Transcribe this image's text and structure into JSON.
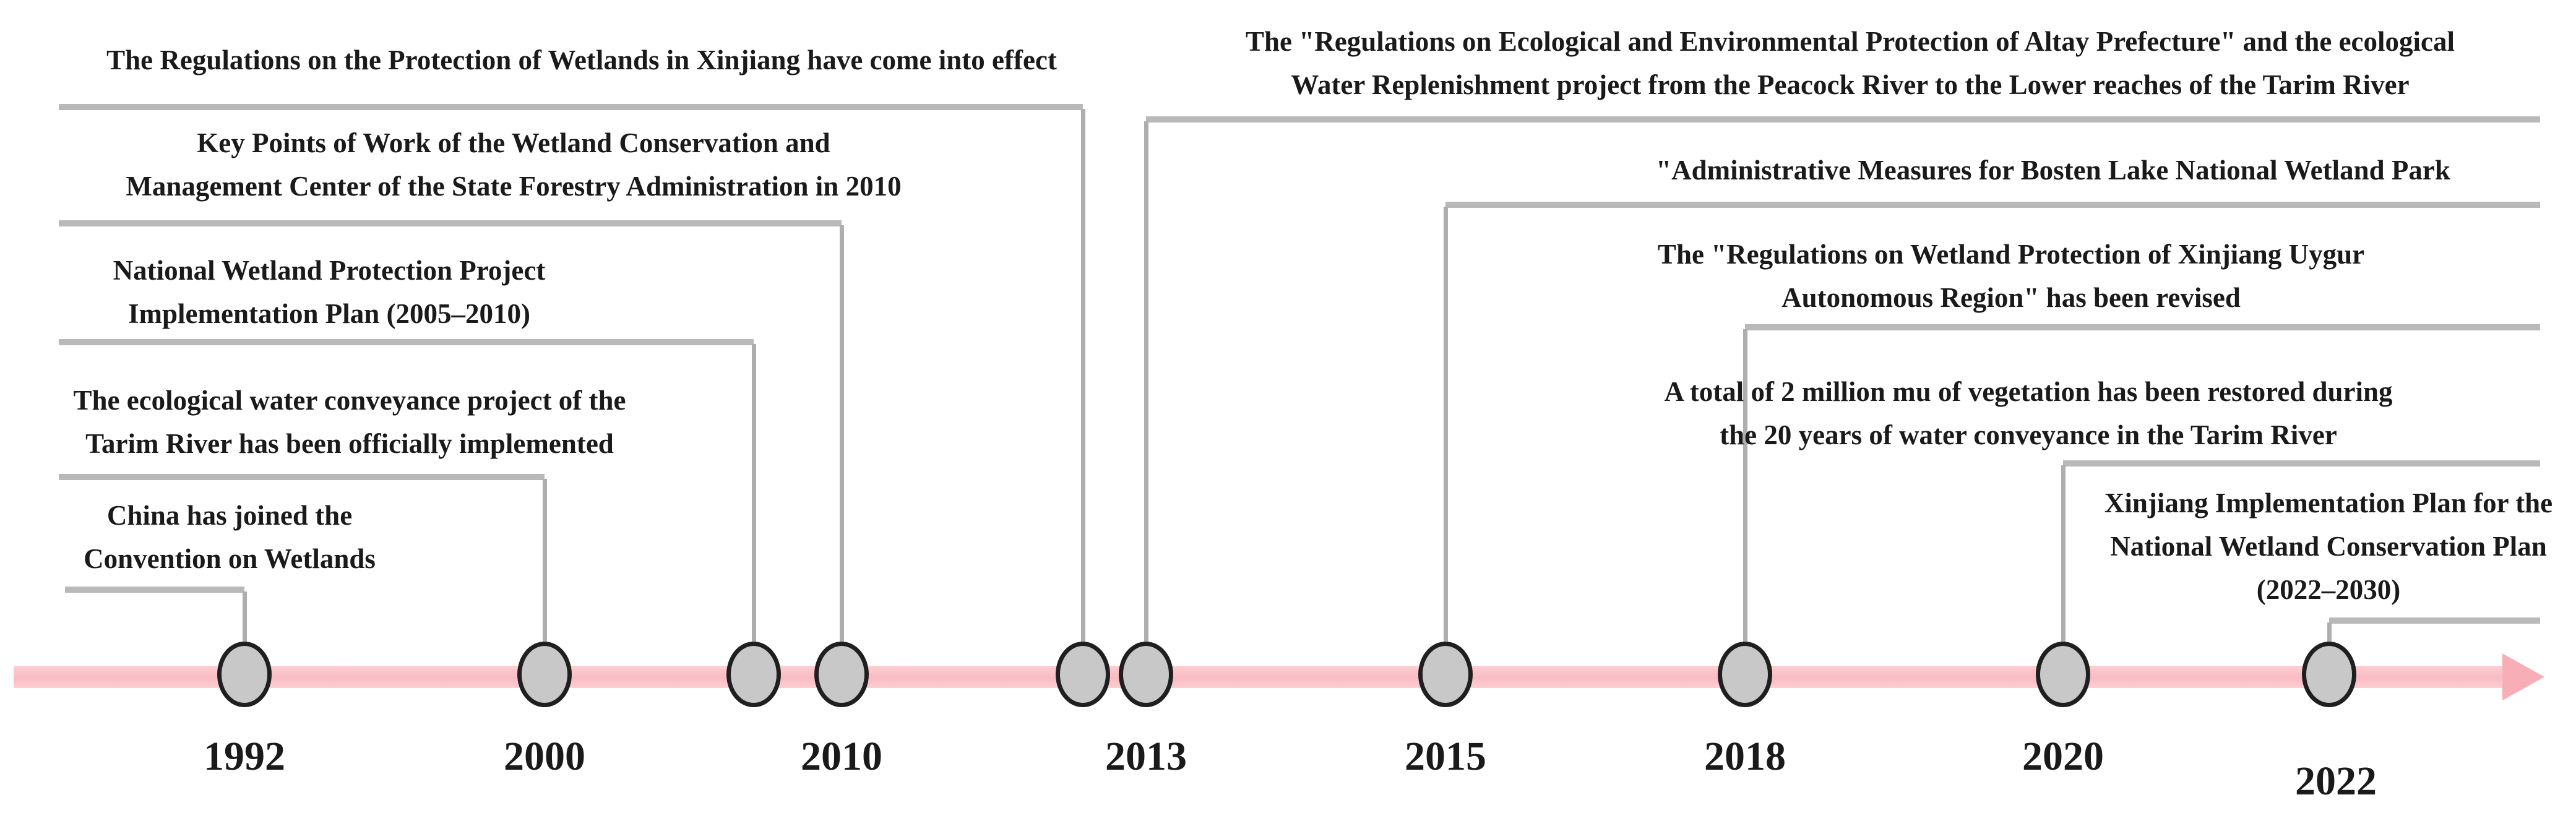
{
  "figure": {
    "type": "timeline",
    "subject": "Wetland protection milestones in Xinjiang, China (1992-2022)",
    "band_color": "#fbc3c9",
    "arrowhead_color": "#f8aeb7",
    "node_fill": "#c8c8c8",
    "node_stroke": "#1f1f1f",
    "connector_color": "#b9b9b9",
    "text_color": "#1a1a1a"
  },
  "year_axis": [
    "1992",
    "2000",
    "2010",
    "2013",
    "2015",
    "2018",
    "2020",
    "2022"
  ],
  "events": [
    {
      "year": "1992",
      "lines": [
        "China has joined the",
        "Convention on Wetlands"
      ]
    },
    {
      "year": "2000",
      "lines": [
        "The ecological water conveyance project of the",
        "Tarim River has been officially implemented"
      ]
    },
    {
      "year": "",
      "lines": [
        "National Wetland Protection Project",
        "Implementation Plan (2005–2010)"
      ]
    },
    {
      "year": "2010",
      "lines": [
        "Key Points of Work of the Wetland Conservation and",
        "Management Center of the State Forestry Administration in 2010"
      ]
    },
    {
      "year": "",
      "lines": [
        "The Regulations on the Protection of Wetlands in Xinjiang have come into effect"
      ]
    },
    {
      "year": "2013",
      "lines": [
        "The \"Regulations on Ecological and Environmental Protection of Altay Prefecture\" and the ecological",
        "Water Replenishment project from the Peacock River to the Lower reaches of the Tarim River"
      ]
    },
    {
      "year": "2015",
      "lines": [
        "\"Administrative Measures for Bosten Lake National Wetland Park"
      ]
    },
    {
      "year": "2018",
      "lines": [
        "The \"Regulations on Wetland Protection of Xinjiang Uygur",
        "Autonomous Region\" has been revised"
      ]
    },
    {
      "year": "2020",
      "lines": [
        "A total of 2 million mu of vegetation has been restored during",
        "the 20 years of water conveyance in the Tarim River"
      ]
    },
    {
      "year": "2022",
      "lines": [
        "Xinjiang Implementation Plan for the",
        "National Wetland Conservation Plan",
        "(2022–2030)"
      ]
    }
  ]
}
